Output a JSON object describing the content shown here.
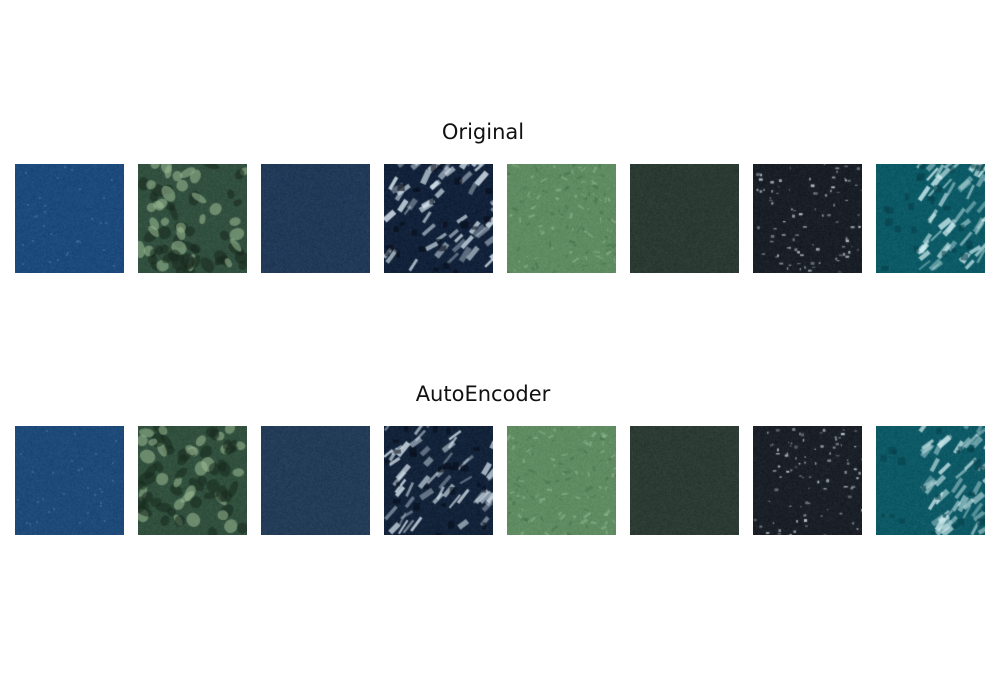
{
  "figure": {
    "rows": [
      {
        "id": "original",
        "title": "Original",
        "tiles": [
          {
            "base": "#1d4a7c",
            "light": "#4c79a9",
            "dark": "#163a66",
            "pattern": "dots"
          },
          {
            "base": "#32503f",
            "light": "#9fbf97",
            "dark": "#17281d",
            "pattern": "blobs"
          },
          {
            "base": "#213a58",
            "light": "#2a4668",
            "dark": "#1a3050",
            "pattern": "plain"
          },
          {
            "base": "#12223a",
            "light": "#d8e6f0",
            "dark": "#060c18",
            "pattern": "streaks"
          },
          {
            "base": "#5f8c61",
            "light": "#9fc49a",
            "dark": "#3f6a45",
            "pattern": "texture"
          },
          {
            "base": "#2c3a34",
            "light": "#3d4c44",
            "dark": "#24302a",
            "pattern": "plain"
          },
          {
            "base": "#1a1f27",
            "light": "#cfd8e0",
            "dark": "#0c0f14",
            "pattern": "sparkle"
          },
          {
            "base": "#0c5a66",
            "light": "#d0eef0",
            "dark": "#06404a",
            "pattern": "streaks-right"
          }
        ]
      },
      {
        "id": "autoencoder",
        "title": "AutoEncoder",
        "tiles": [
          {
            "base": "#1e4a7a",
            "light": "#4a76a4",
            "dark": "#173b66",
            "pattern": "dots"
          },
          {
            "base": "#31503e",
            "light": "#9cbc94",
            "dark": "#18291e",
            "pattern": "blobs"
          },
          {
            "base": "#233c58",
            "light": "#2b4667",
            "dark": "#1b3150",
            "pattern": "plain"
          },
          {
            "base": "#13233a",
            "light": "#d4e2ec",
            "dark": "#070d19",
            "pattern": "streaks"
          },
          {
            "base": "#608c62",
            "light": "#9cc298",
            "dark": "#406b46",
            "pattern": "texture"
          },
          {
            "base": "#2d3b35",
            "light": "#3c4a43",
            "dark": "#252f2b",
            "pattern": "plain"
          },
          {
            "base": "#1b2028",
            "light": "#cbd4dc",
            "dark": "#0d1015",
            "pattern": "sparkle"
          },
          {
            "base": "#0d5a66",
            "light": "#cce9ec",
            "dark": "#07414b",
            "pattern": "streaks-right"
          }
        ]
      }
    ]
  }
}
